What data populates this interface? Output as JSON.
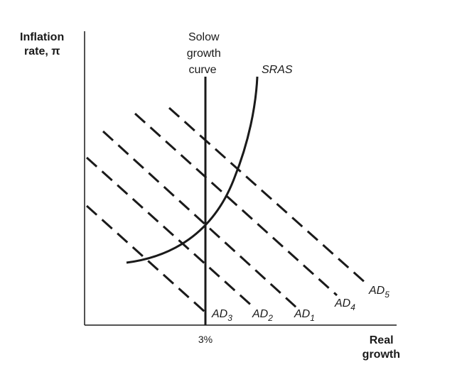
{
  "y_axis": {
    "title_line1": "Inflation",
    "title_line2": "rate, π"
  },
  "x_axis": {
    "title_line1": "Real",
    "title_line2": "growth",
    "tick": "3%"
  },
  "solow": {
    "line1": "Solow",
    "line2": "growth",
    "line3": "curve"
  },
  "sras": {
    "label": "SRAS"
  },
  "ad_curves": [
    {
      "name": "AD",
      "sub": "3"
    },
    {
      "name": "AD",
      "sub": "2"
    },
    {
      "name": "AD",
      "sub": "1"
    },
    {
      "name": "AD",
      "sub": "4"
    },
    {
      "name": "AD",
      "sub": "5"
    }
  ],
  "colors": {
    "ink": "#1a1a1a",
    "background": "#ffffff"
  }
}
